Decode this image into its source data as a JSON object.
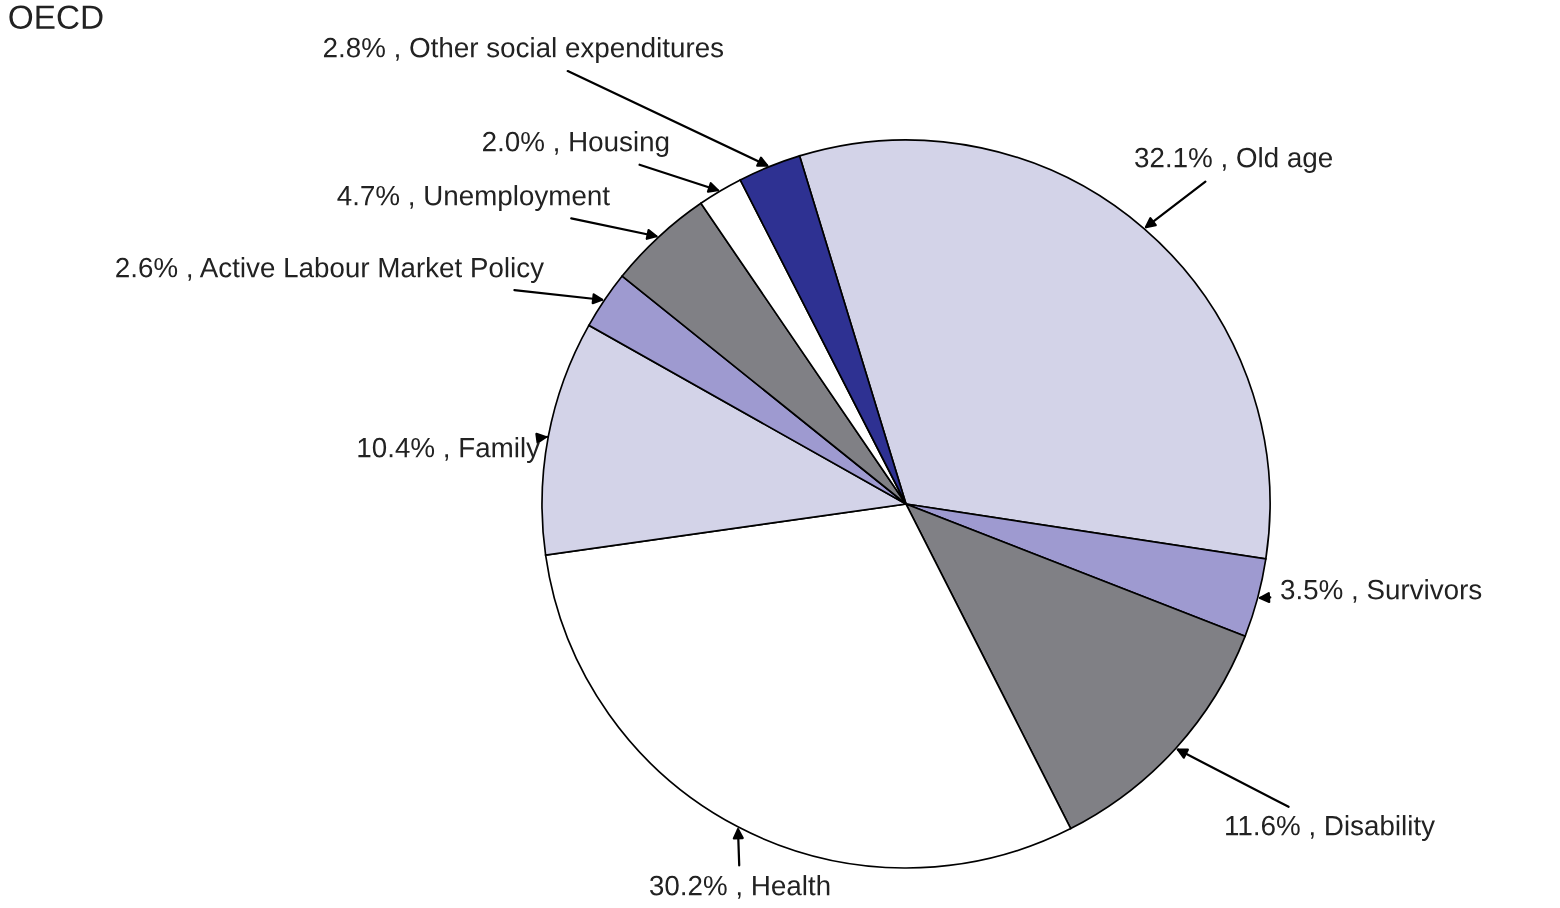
{
  "chart_data": {
    "type": "pie",
    "title": "OECD",
    "categories": [
      "32.1% , Old age",
      "3.5% , Survivors",
      "11.6% , Disability",
      "30.2% , Health",
      "10.4% , Family",
      "2.6% , Active Labour Market Policy",
      "4.7% , Unemployment",
      "2.0% , Housing",
      "2.8% , Other social expenditures"
    ],
    "values": [
      32.1,
      3.5,
      11.6,
      30.2,
      10.4,
      2.6,
      4.7,
      2.0,
      2.8
    ],
    "colors": [
      "#d3d3e8",
      "#9e9ad0",
      "#808085",
      "#ffffff",
      "#d3d3e8",
      "#9e9ad0",
      "#808085",
      "#ffffff",
      "#2e3192"
    ],
    "legend": false
  }
}
